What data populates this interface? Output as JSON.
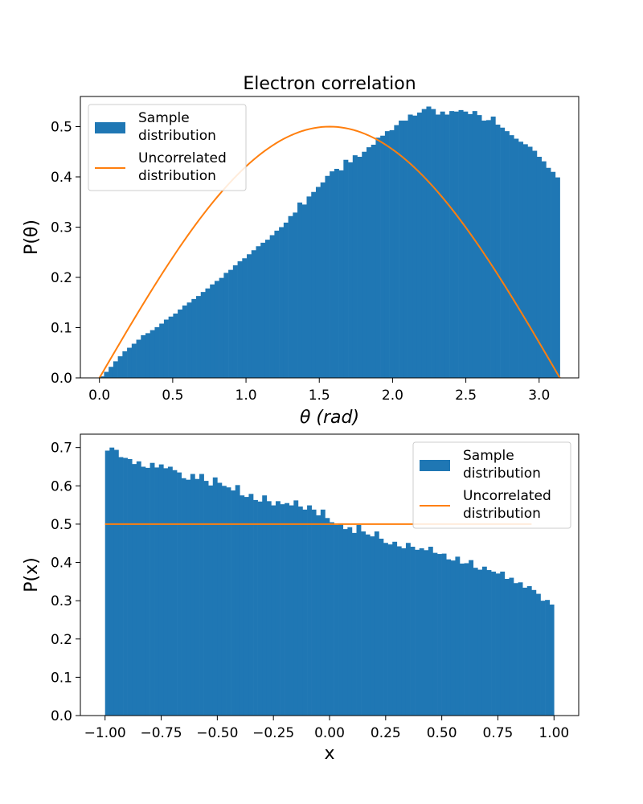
{
  "colors": {
    "histogram": "#1f77b4",
    "uncorrelated": "#ff7f0e"
  },
  "chart_data": [
    {
      "type": "histogram-line",
      "title": "Electron correlation",
      "xlabel": "θ (rad)",
      "ylabel": "P(θ)",
      "xlim": [
        -0.13,
        3.27
      ],
      "ylim": [
        0,
        0.56
      ],
      "xticks": [
        "0.0",
        "0.5",
        "1.0",
        "1.5",
        "2.0",
        "2.5",
        "3.0"
      ],
      "yticks": [
        "0.0",
        "0.1",
        "0.2",
        "0.3",
        "0.4",
        "0.5"
      ],
      "legend_position": "upper-left",
      "hist": {
        "name": "Sample distribution",
        "range": [
          0,
          3.1416
        ],
        "bins": 100,
        "values": [
          0.003,
          0.012,
          0.022,
          0.033,
          0.043,
          0.053,
          0.06,
          0.068,
          0.076,
          0.085,
          0.089,
          0.095,
          0.101,
          0.108,
          0.116,
          0.122,
          0.128,
          0.136,
          0.144,
          0.15,
          0.157,
          0.163,
          0.171,
          0.178,
          0.186,
          0.193,
          0.199,
          0.209,
          0.215,
          0.224,
          0.232,
          0.238,
          0.246,
          0.254,
          0.262,
          0.269,
          0.275,
          0.284,
          0.293,
          0.3,
          0.309,
          0.322,
          0.329,
          0.349,
          0.345,
          0.361,
          0.37,
          0.38,
          0.389,
          0.402,
          0.411,
          0.416,
          0.413,
          0.434,
          0.429,
          0.443,
          0.44,
          0.45,
          0.459,
          0.464,
          0.478,
          0.482,
          0.491,
          0.493,
          0.503,
          0.512,
          0.512,
          0.524,
          0.522,
          0.528,
          0.535,
          0.54,
          0.535,
          0.524,
          0.53,
          0.524,
          0.531,
          0.53,
          0.533,
          0.53,
          0.525,
          0.531,
          0.523,
          0.512,
          0.513,
          0.52,
          0.504,
          0.498,
          0.491,
          0.483,
          0.476,
          0.47,
          0.465,
          0.46,
          0.452,
          0.44,
          0.431,
          0.418,
          0.41,
          0.399
        ],
        "sparse_note": ""
      },
      "line": {
        "name": "Uncorrelated distribution",
        "function": "0.5*sin(theta)",
        "x": [
          0,
          0.1,
          0.2,
          0.3,
          0.4,
          0.5,
          0.6,
          0.7,
          0.8,
          0.9,
          1.0,
          1.1,
          1.2,
          1.3,
          1.4,
          1.5,
          1.6,
          1.7,
          1.8,
          1.9,
          2.0,
          2.1,
          2.2,
          2.3,
          2.4,
          2.5,
          2.6,
          2.7,
          2.8,
          2.9,
          3.0,
          3.1
        ],
        "y": [
          0.0,
          0.05,
          0.099,
          0.148,
          0.195,
          0.24,
          0.282,
          0.322,
          0.359,
          0.392,
          0.421,
          0.446,
          0.466,
          0.482,
          0.493,
          0.499,
          0.5,
          0.496,
          0.487,
          0.473,
          0.455,
          0.432,
          0.404,
          0.373,
          0.338,
          0.299,
          0.258,
          0.214,
          0.167,
          0.12,
          0.071,
          0.021
        ]
      }
    },
    {
      "type": "histogram-line",
      "title": "",
      "xlabel": "x",
      "ylabel": "P(x)",
      "xlim": [
        -1.11,
        1.11
      ],
      "ylim": [
        0,
        0.735
      ],
      "xticks": [
        "−1.00",
        "−0.75",
        "−0.50",
        "−0.25",
        "0.00",
        "0.25",
        "0.50",
        "0.75",
        "1.00"
      ],
      "yticks": [
        "0.0",
        "0.1",
        "0.2",
        "0.3",
        "0.4",
        "0.5",
        "0.6",
        "0.7"
      ],
      "legend_position": "upper-right",
      "hist": {
        "name": "Sample distribution",
        "range": [
          -1,
          1
        ],
        "bins": 100,
        "values": [
          0.692,
          0.7,
          0.694,
          0.675,
          0.673,
          0.67,
          0.657,
          0.664,
          0.65,
          0.647,
          0.66,
          0.648,
          0.656,
          0.646,
          0.65,
          0.641,
          0.635,
          0.62,
          0.616,
          0.631,
          0.618,
          0.631,
          0.613,
          0.601,
          0.622,
          0.608,
          0.6,
          0.596,
          0.588,
          0.602,
          0.575,
          0.571,
          0.579,
          0.563,
          0.559,
          0.575,
          0.56,
          0.549,
          0.56,
          0.552,
          0.555,
          0.549,
          0.562,
          0.546,
          0.538,
          0.549,
          0.538,
          0.523,
          0.538,
          0.516,
          0.505,
          0.498,
          0.502,
          0.487,
          0.492,
          0.477,
          0.498,
          0.481,
          0.473,
          0.468,
          0.481,
          0.462,
          0.451,
          0.447,
          0.454,
          0.442,
          0.437,
          0.451,
          0.441,
          0.433,
          0.437,
          0.432,
          0.441,
          0.425,
          0.422,
          0.423,
          0.408,
          0.405,
          0.415,
          0.397,
          0.398,
          0.406,
          0.386,
          0.381,
          0.389,
          0.38,
          0.376,
          0.371,
          0.376,
          0.357,
          0.36,
          0.346,
          0.348,
          0.334,
          0.338,
          0.328,
          0.318,
          0.3,
          0.302,
          0.29
        ],
        "sparse_note": ""
      },
      "line": {
        "name": "Uncorrelated distribution",
        "function": "0.5",
        "x": [
          -1.0,
          0.9
        ],
        "y": [
          0.5,
          0.5
        ]
      }
    }
  ],
  "legend": {
    "sample_line1": "Sample",
    "sample_line2": "distribution",
    "uncorr_line1": "Uncorrelated",
    "uncorr_line2": "distribution"
  }
}
